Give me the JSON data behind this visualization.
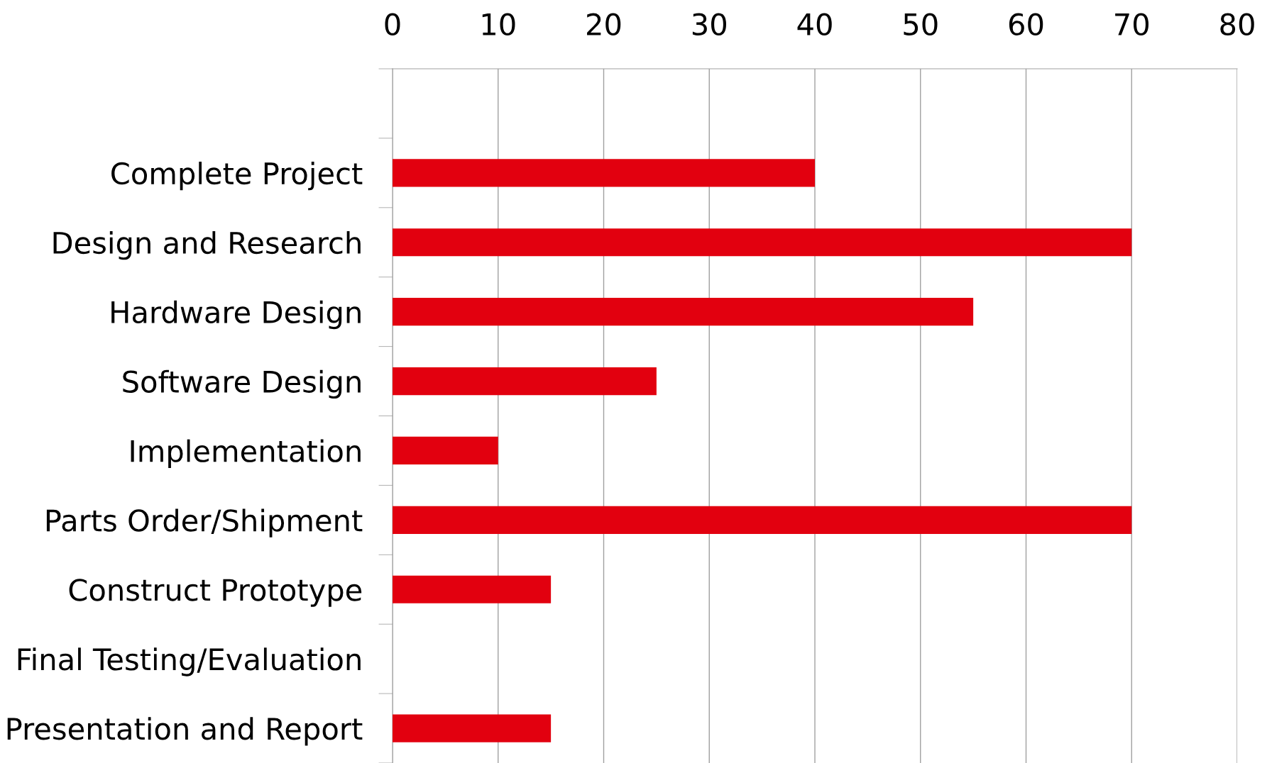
{
  "chart_data": {
    "type": "bar",
    "orientation": "horizontal",
    "categories": [
      null,
      "Complete Project",
      "Design and Research",
      "Hardware Design",
      "Software Design",
      "Implementation",
      "Parts Order/Shipment",
      "Construct Prototype",
      "Final Testing/Evaluation",
      "Presentation and Report"
    ],
    "values": [
      null,
      40,
      70,
      55,
      25,
      10,
      70,
      15,
      0,
      15
    ],
    "color": "#e2000f",
    "xlim": [
      0,
      80
    ],
    "xticks": [
      0,
      10,
      20,
      30,
      40,
      50,
      60,
      70,
      80
    ],
    "grid": "x",
    "legend": false
  }
}
